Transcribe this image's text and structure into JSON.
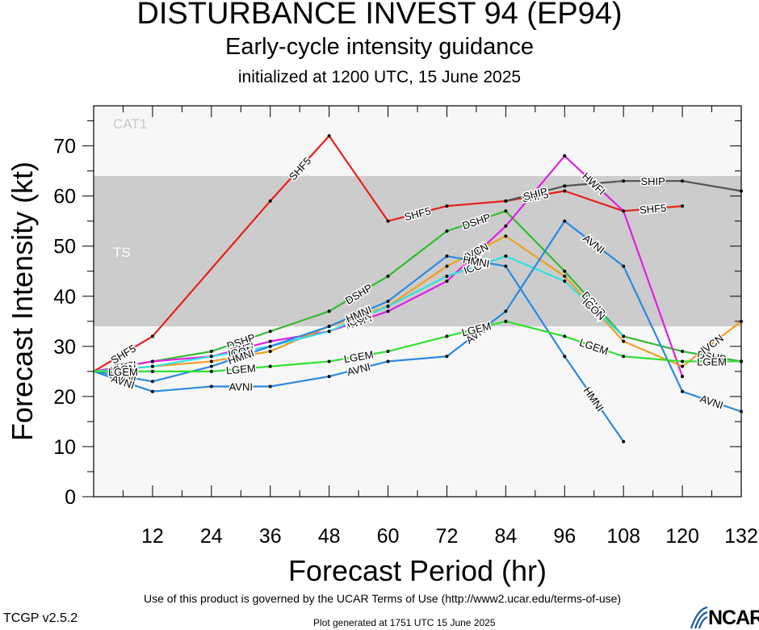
{
  "header": {
    "title": "DISTURBANCE INVEST 94 (EP94)",
    "subtitle": "Early-cycle intensity guidance",
    "initialized": "initialized at 1200 UTC, 15 June 2025"
  },
  "footer": {
    "terms": "Use of this product is governed by the UCAR Terms of Use (http://www2.ucar.edu/terms-of-use)",
    "version": "TCGP v2.5.2",
    "generated": "Plot generated at 1751 UTC   15 June 2025",
    "logo": "NCAR"
  },
  "chart_data": {
    "type": "line",
    "title": "DISTURBANCE INVEST 94 (EP94)",
    "subtitle": "Early-cycle intensity guidance",
    "xlabel": "Forecast Period (hr)",
    "ylabel": "Forecast Intensity (kt)",
    "xlim": [
      0,
      132
    ],
    "ylim": [
      0,
      78
    ],
    "xticks": [
      12,
      24,
      36,
      48,
      60,
      72,
      84,
      96,
      108,
      120,
      132
    ],
    "yticks": [
      0,
      10,
      20,
      30,
      40,
      50,
      60,
      70
    ],
    "bands": [
      {
        "label": "CAT1",
        "from": 64,
        "to": 78,
        "color": "#f7f7f7"
      },
      {
        "label": "TS",
        "from": 34,
        "to": 64,
        "color": "#cccccc"
      },
      {
        "label": "",
        "from": 0,
        "to": 34,
        "color": "#f7f7f7"
      }
    ],
    "series": [
      {
        "name": "SHF5",
        "color": "#e8201a",
        "x": [
          0,
          12,
          36,
          48,
          60,
          72,
          84,
          96,
          108,
          120
        ],
        "y": [
          25,
          32,
          59,
          72,
          55,
          58,
          59,
          61,
          57,
          58
        ]
      },
      {
        "name": "SHIP",
        "color": "#555555",
        "x": [
          84,
          96,
          108,
          120,
          132
        ],
        "y": [
          59,
          62,
          63,
          63,
          61
        ]
      },
      {
        "name": "DSHP",
        "color": "#33bb33",
        "x": [
          0,
          12,
          24,
          36,
          48,
          60,
          72,
          84,
          96,
          108,
          120,
          132
        ],
        "y": [
          25,
          27,
          29,
          33,
          37,
          44,
          53,
          57,
          45,
          32,
          29,
          27
        ]
      },
      {
        "name": "HWFI",
        "color": "#e020e0",
        "x": [
          0,
          12,
          24,
          36,
          48,
          60,
          72,
          84,
          96,
          108,
          120
        ],
        "y": [
          25,
          27,
          28,
          31,
          33,
          37,
          43,
          54,
          68,
          57,
          24
        ]
      },
      {
        "name": "IVCN",
        "color": "#f0a020",
        "x": [
          0,
          12,
          24,
          36,
          48,
          60,
          72,
          84,
          96,
          108,
          120,
          132
        ],
        "y": [
          25,
          26,
          27,
          29,
          34,
          38,
          46,
          52,
          44,
          31,
          26,
          35
        ]
      },
      {
        "name": "ICON",
        "color": "#30e0e0",
        "x": [
          0,
          12,
          24,
          36,
          48,
          60,
          72,
          84,
          96,
          108
        ],
        "y": [
          25,
          26,
          28,
          30,
          33,
          38,
          44,
          48,
          43,
          32
        ]
      },
      {
        "name": "HMNI",
        "color": "#2a8ae0",
        "x": [
          0,
          12,
          24,
          36,
          48,
          60,
          72,
          84,
          96,
          108
        ],
        "y": [
          25,
          23,
          26,
          30,
          34,
          39,
          48,
          46,
          28,
          11
        ]
      },
      {
        "name": "AVNI",
        "color": "#2a8ae0",
        "x": [
          0,
          12,
          24,
          36,
          48,
          60,
          72,
          84,
          96,
          108,
          120,
          132
        ],
        "y": [
          25,
          21,
          22,
          22,
          24,
          27,
          28,
          37,
          55,
          46,
          21,
          17
        ]
      },
      {
        "name": "LGEM",
        "color": "#30e030",
        "x": [
          0,
          12,
          24,
          36,
          48,
          60,
          72,
          84,
          96,
          108,
          120,
          132
        ],
        "y": [
          25,
          25,
          25,
          26,
          27,
          29,
          32,
          35,
          32,
          28,
          27,
          27
        ]
      }
    ]
  }
}
